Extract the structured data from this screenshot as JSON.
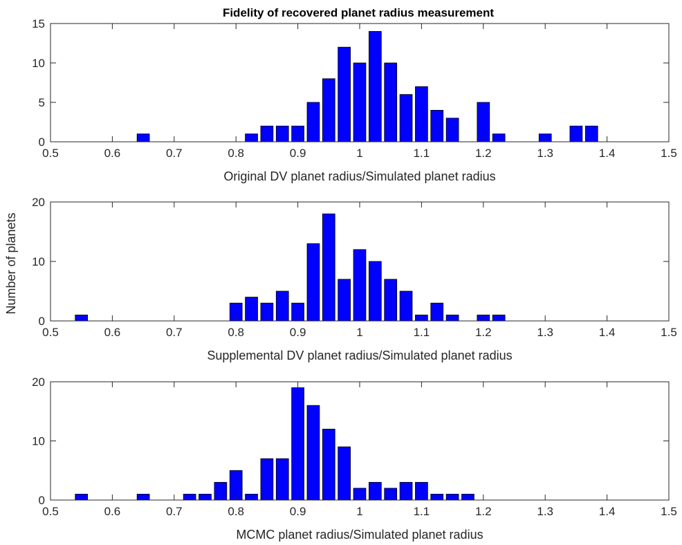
{
  "title": "Fidelity of recovered planet radius measurement",
  "shared_ylabel": "Number of planets",
  "colors": {
    "bar": "#0000ff",
    "bar_edge": "#000000",
    "axis": "#262626"
  },
  "chart_data": [
    {
      "type": "bar",
      "title": "Fidelity of recovered planet radius measurement",
      "xlabel": "Original DV planet radius/Simulated planet radius",
      "ylabel": "Number of planets",
      "xlim": [
        0.5,
        1.5
      ],
      "ylim": [
        0,
        15
      ],
      "xticks": [
        "0.5",
        "0.6",
        "0.7",
        "0.8",
        "0.9",
        "1",
        "1.1",
        "1.2",
        "1.3",
        "1.4",
        "1.5"
      ],
      "yticks": [
        "0",
        "5",
        "10",
        "15"
      ],
      "bin_width": 0.025,
      "x": [
        0.525,
        0.55,
        0.575,
        0.6,
        0.625,
        0.65,
        0.675,
        0.7,
        0.725,
        0.75,
        0.775,
        0.8,
        0.825,
        0.85,
        0.875,
        0.9,
        0.925,
        0.95,
        0.975,
        1.0,
        1.025,
        1.05,
        1.075,
        1.1,
        1.125,
        1.15,
        1.175,
        1.2,
        1.225,
        1.25,
        1.275,
        1.3,
        1.325,
        1.35,
        1.375,
        1.4,
        1.425,
        1.45,
        1.475
      ],
      "values": [
        0,
        0,
        0,
        0,
        0,
        1,
        0,
        0,
        0,
        0,
        0,
        0,
        1,
        2,
        2,
        2,
        5,
        8,
        12,
        10,
        14,
        10,
        6,
        7,
        4,
        3,
        0,
        5,
        1,
        0,
        0,
        1,
        0,
        2,
        2,
        0,
        0,
        0,
        0
      ],
      "grid": false
    },
    {
      "type": "bar",
      "title": "",
      "xlabel": "Supplemental DV planet radius/Simulated planet radius",
      "ylabel": "Number of planets",
      "xlim": [
        0.5,
        1.5
      ],
      "ylim": [
        0,
        20
      ],
      "xticks": [
        "0.5",
        "0.6",
        "0.7",
        "0.8",
        "0.9",
        "1",
        "1.1",
        "1.2",
        "1.3",
        "1.4",
        "1.5"
      ],
      "yticks": [
        "0",
        "10",
        "20"
      ],
      "bin_width": 0.025,
      "x": [
        0.525,
        0.55,
        0.575,
        0.6,
        0.625,
        0.65,
        0.675,
        0.7,
        0.725,
        0.75,
        0.775,
        0.8,
        0.825,
        0.85,
        0.875,
        0.9,
        0.925,
        0.95,
        0.975,
        1.0,
        1.025,
        1.05,
        1.075,
        1.1,
        1.125,
        1.15,
        1.175,
        1.2,
        1.225,
        1.25,
        1.275,
        1.3,
        1.325,
        1.35,
        1.375,
        1.4,
        1.425,
        1.45,
        1.475
      ],
      "values": [
        0,
        1,
        0,
        0,
        0,
        0,
        0,
        0,
        0,
        0,
        0,
        3,
        4,
        3,
        5,
        3,
        13,
        18,
        7,
        12,
        10,
        7,
        5,
        1,
        3,
        1,
        0,
        1,
        1,
        0,
        0,
        0,
        0,
        0,
        0,
        0,
        0,
        0,
        0
      ],
      "grid": false
    },
    {
      "type": "bar",
      "title": "",
      "xlabel": "MCMC planet radius/Simulated planet radius",
      "ylabel": "Number of planets",
      "xlim": [
        0.5,
        1.5
      ],
      "ylim": [
        0,
        20
      ],
      "xticks": [
        "0.5",
        "0.6",
        "0.7",
        "0.8",
        "0.9",
        "1",
        "1.1",
        "1.2",
        "1.3",
        "1.4",
        "1.5"
      ],
      "yticks": [
        "0",
        "10",
        "20"
      ],
      "bin_width": 0.025,
      "x": [
        0.525,
        0.55,
        0.575,
        0.6,
        0.625,
        0.65,
        0.675,
        0.7,
        0.725,
        0.75,
        0.775,
        0.8,
        0.825,
        0.85,
        0.875,
        0.9,
        0.925,
        0.95,
        0.975,
        1.0,
        1.025,
        1.05,
        1.075,
        1.1,
        1.125,
        1.15,
        1.175,
        1.2,
        1.225,
        1.25,
        1.275,
        1.3,
        1.325,
        1.35,
        1.375,
        1.4,
        1.425,
        1.45,
        1.475
      ],
      "values": [
        0,
        1,
        0,
        0,
        0,
        1,
        0,
        0,
        1,
        1,
        3,
        5,
        1,
        7,
        7,
        19,
        16,
        12,
        9,
        2,
        3,
        2,
        3,
        3,
        1,
        1,
        1,
        0,
        0,
        0,
        0,
        0,
        0,
        0,
        0,
        0,
        0,
        0,
        0
      ],
      "grid": false
    }
  ]
}
